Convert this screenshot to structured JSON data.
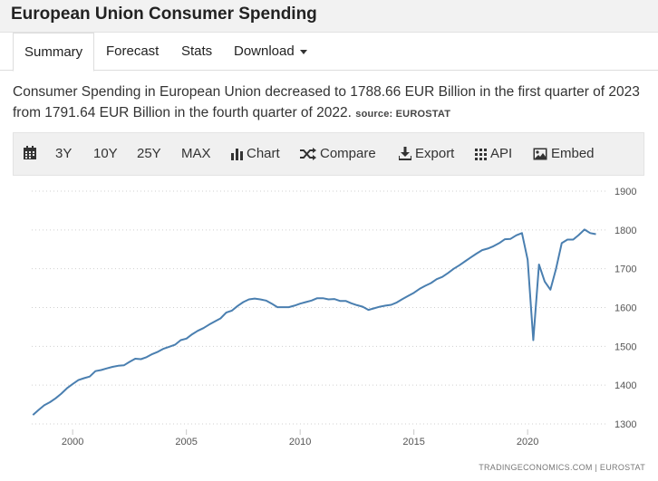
{
  "header": {
    "title": "European Union Consumer Spending"
  },
  "tabs": [
    {
      "label": "Summary",
      "active": true
    },
    {
      "label": "Forecast"
    },
    {
      "label": "Stats"
    },
    {
      "label": "Download"
    }
  ],
  "description": {
    "text": "Consumer Spending in European Union decreased to 1788.66 EUR Billion in the first quarter of 2023 from 1791.64 EUR Billion in the fourth quarter of 2022.",
    "source": "source: EUROSTAT"
  },
  "toolbar": {
    "ranges": [
      "3Y",
      "10Y",
      "25Y",
      "MAX"
    ],
    "chart": "Chart",
    "compare": "Compare",
    "export": "Export",
    "api": "API",
    "embed": "Embed"
  },
  "colors": {
    "line": "#4a7fb0",
    "grid": "#d0d0d0"
  },
  "chart_data": {
    "type": "line",
    "title": "",
    "xlabel": "",
    "ylabel": "",
    "xlim": [
      1998.2,
      2023.5
    ],
    "ylim": [
      1300,
      1900
    ],
    "y_ticks": [
      1300,
      1400,
      1500,
      1600,
      1700,
      1800,
      1900
    ],
    "x_ticks": [
      2000,
      2005,
      2010,
      2015,
      2020
    ],
    "y_axis_side": "right",
    "grid": "horizontal dotted",
    "watermark": "TRADINGECONOMICS.COM  |  EUROSTAT",
    "series": [
      {
        "x": [
          1998.25,
          1998.5,
          1998.75,
          1999.0,
          1999.25,
          1999.5,
          1999.75,
          2000.0,
          2000.25,
          2000.5,
          2000.75,
          2001.0,
          2001.25,
          2001.5,
          2001.75,
          2002.0,
          2002.25,
          2002.5,
          2002.75,
          2003.0,
          2003.25,
          2003.5,
          2003.75,
          2004.0,
          2004.25,
          2004.5,
          2004.75,
          2005.0,
          2005.25,
          2005.5,
          2005.75,
          2006.0,
          2006.25,
          2006.5,
          2006.75,
          2007.0,
          2007.25,
          2007.5,
          2007.75,
          2008.0,
          2008.25,
          2008.5,
          2008.75,
          2009.0,
          2009.25,
          2009.5,
          2009.75,
          2010.0,
          2010.25,
          2010.5,
          2010.75,
          2011.0,
          2011.25,
          2011.5,
          2011.75,
          2012.0,
          2012.25,
          2012.5,
          2012.75,
          2013.0,
          2013.25,
          2013.5,
          2013.75,
          2014.0,
          2014.25,
          2014.5,
          2014.75,
          2015.0,
          2015.25,
          2015.5,
          2015.75,
          2016.0,
          2016.25,
          2016.5,
          2016.75,
          2017.0,
          2017.25,
          2017.5,
          2017.75,
          2018.0,
          2018.25,
          2018.5,
          2018.75,
          2019.0,
          2019.25,
          2019.5,
          2019.75,
          2020.0,
          2020.25,
          2020.5,
          2020.75,
          2021.0,
          2021.25,
          2021.5,
          2021.75,
          2022.0,
          2022.25,
          2022.5,
          2022.75,
          2023.0
        ],
        "values": [
          1323,
          1336,
          1348,
          1356,
          1366,
          1378,
          1392,
          1403,
          1413,
          1418,
          1422,
          1436,
          1439,
          1443,
          1447,
          1450,
          1451,
          1460,
          1468,
          1467,
          1472,
          1480,
          1486,
          1494,
          1499,
          1504,
          1516,
          1520,
          1531,
          1540,
          1547,
          1556,
          1564,
          1572,
          1587,
          1592,
          1604,
          1614,
          1621,
          1623,
          1621,
          1618,
          1610,
          1601,
          1601,
          1601,
          1605,
          1610,
          1614,
          1618,
          1624,
          1624,
          1621,
          1622,
          1617,
          1617,
          1611,
          1606,
          1602,
          1594,
          1598,
          1602,
          1605,
          1607,
          1613,
          1622,
          1630,
          1638,
          1648,
          1656,
          1663,
          1673,
          1679,
          1689,
          1700,
          1709,
          1719,
          1729,
          1739,
          1748,
          1752,
          1758,
          1766,
          1776,
          1777,
          1786,
          1792,
          1723,
          1516,
          1711,
          1667,
          1646,
          1700,
          1766,
          1775,
          1775,
          1787,
          1801,
          1792,
          1789
        ]
      }
    ]
  }
}
